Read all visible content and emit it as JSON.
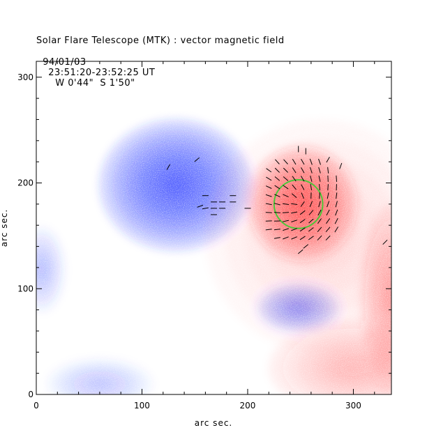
{
  "header": {
    "title": "Solar Flare Telescope (MTK) : vector magnetic field",
    "subtitle_date": "94/01/03",
    "subtitle_time": "23:51:20-23:52:25 UT",
    "subtitle_position": "W 0'44\"  S 1'50\""
  },
  "chart_data": {
    "type": "heatmap",
    "title": "Solar Flare Telescope (MTK) : vector magnetic field",
    "subtitle": "94/01/03  23:51:20-23:52:25 UT    W 0'44\"  S 1'50\"",
    "xlabel": "arc sec.",
    "ylabel": "arc sec.",
    "xlim": [
      0,
      336
    ],
    "ylim": [
      0,
      315
    ],
    "x_ticks": [
      0,
      100,
      200,
      300
    ],
    "y_ticks": [
      0,
      100,
      200,
      300
    ],
    "colors": {
      "negative": "#2a3cff",
      "positive": "#ff2a2a",
      "contour": "#4cc73a",
      "vector": "#000000"
    },
    "regions": [
      {
        "name": "large negative polarity spot",
        "polarity": "negative",
        "center": [
          132,
          198
        ],
        "radius": [
          72,
          62
        ],
        "peak": 1.0
      },
      {
        "name": "positive polarity spot",
        "polarity": "positive",
        "center": [
          252,
          180
        ],
        "radius": [
          52,
          55
        ],
        "peak": 0.85
      },
      {
        "name": "small negative polarity spot",
        "polarity": "negative",
        "center": [
          248,
          82
        ],
        "radius": [
          40,
          24
        ],
        "peak": 0.55
      },
      {
        "name": "left-edge negative region",
        "polarity": "negative",
        "center": [
          5,
          118
        ],
        "radius": [
          22,
          40
        ],
        "peak": 0.3
      },
      {
        "name": "bottom negative region",
        "polarity": "negative",
        "center": [
          60,
          10
        ],
        "radius": [
          50,
          24
        ],
        "peak": 0.25
      },
      {
        "name": "right-edge positive region",
        "polarity": "positive",
        "center": [
          336,
          90
        ],
        "radius": [
          30,
          90
        ],
        "peak": 0.4
      },
      {
        "name": "bottom-right positive region",
        "polarity": "positive",
        "center": [
          300,
          25
        ],
        "radius": [
          80,
          45
        ],
        "peak": 0.3
      },
      {
        "name": "diffuse positive plage",
        "polarity": "positive",
        "center": [
          270,
          150
        ],
        "radius": [
          110,
          110
        ],
        "peak": 0.15
      }
    ],
    "contour": {
      "center": [
        248,
        180
      ],
      "radius": 23
    },
    "vector_field": {
      "grid_x": [
        220,
        228,
        236,
        244,
        252,
        260,
        268,
        276,
        284
      ],
      "grid_y": [
        148,
        156,
        164,
        172,
        180,
        188,
        196,
        204,
        212,
        220
      ],
      "extra_vectors": [
        {
          "x": 125,
          "y": 215,
          "angle": 60
        },
        {
          "x": 152,
          "y": 222,
          "angle": 40
        },
        {
          "x": 160,
          "y": 188,
          "angle": 180
        },
        {
          "x": 168,
          "y": 182,
          "angle": 180
        },
        {
          "x": 176,
          "y": 182,
          "angle": 180
        },
        {
          "x": 168,
          "y": 176,
          "angle": 180
        },
        {
          "x": 176,
          "y": 176,
          "angle": 180
        },
        {
          "x": 160,
          "y": 176,
          "angle": 190
        },
        {
          "x": 186,
          "y": 188,
          "angle": 180
        },
        {
          "x": 186,
          "y": 182,
          "angle": 180
        },
        {
          "x": 200,
          "y": 176,
          "angle": 180
        },
        {
          "x": 168,
          "y": 170,
          "angle": 180
        },
        {
          "x": 155,
          "y": 178,
          "angle": 200
        },
        {
          "x": 248,
          "y": 232,
          "angle": 90
        },
        {
          "x": 255,
          "y": 230,
          "angle": 90
        },
        {
          "x": 276,
          "y": 222,
          "angle": 60
        },
        {
          "x": 288,
          "y": 216,
          "angle": 70
        },
        {
          "x": 250,
          "y": 135,
          "angle": 220
        },
        {
          "x": 255,
          "y": 140,
          "angle": 220
        },
        {
          "x": 330,
          "y": 144,
          "angle": 45
        }
      ]
    }
  }
}
